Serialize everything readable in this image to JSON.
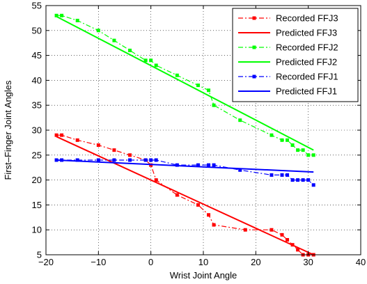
{
  "chart_data": {
    "type": "line",
    "title": "",
    "xlabel": "Wrist Joint Angle",
    "ylabel": "First–Finger Joint Angles",
    "xlim": [
      -20,
      40
    ],
    "ylim": [
      5,
      55
    ],
    "xticks": [
      -20,
      -10,
      0,
      10,
      20,
      30,
      40
    ],
    "yticks": [
      5,
      10,
      15,
      20,
      25,
      30,
      35,
      40,
      45,
      50,
      55
    ],
    "xtick_labels": [
      "−20",
      "−10",
      "0",
      "10",
      "20",
      "30",
      "40"
    ],
    "ytick_labels": [
      "5",
      "10",
      "15",
      "20",
      "25",
      "30",
      "35",
      "40",
      "45",
      "50",
      "55"
    ],
    "grid": true,
    "legend_position": "top-right",
    "series": [
      {
        "name": "Recorded FFJ3",
        "color": "#ff0000",
        "style": "dash-dot",
        "marker": "square",
        "x": [
          -18,
          -17,
          -14,
          -10,
          -7,
          -4,
          -1,
          0,
          1,
          5,
          9,
          11,
          12,
          18,
          23,
          25,
          26,
          27,
          28,
          29,
          30,
          31
        ],
        "y": [
          29,
          29,
          28,
          27,
          26,
          25,
          24,
          23,
          20,
          17,
          15,
          13,
          11,
          10,
          10,
          9,
          8,
          7,
          6,
          5,
          5,
          5
        ]
      },
      {
        "name": "Predicted FFJ3",
        "color": "#ff0000",
        "style": "solid",
        "marker": "none",
        "x": [
          -18,
          31
        ],
        "y": [
          28.7,
          5
        ]
      },
      {
        "name": "Recorded FFJ2",
        "color": "#00ff00",
        "style": "dash-dot",
        "marker": "square",
        "x": [
          -18,
          -17,
          -14,
          -10,
          -7,
          -4,
          -1,
          0,
          1,
          5,
          9,
          11,
          12,
          17,
          23,
          25,
          26,
          27,
          28,
          29,
          30,
          31
        ],
        "y": [
          53,
          53,
          52,
          50,
          48,
          46,
          44,
          44,
          43,
          41,
          39,
          38,
          35,
          32,
          29,
          28,
          28,
          27,
          26,
          26,
          25,
          25
        ]
      },
      {
        "name": "Predicted FFJ2",
        "color": "#00ff00",
        "style": "solid",
        "marker": "none",
        "x": [
          -18,
          31
        ],
        "y": [
          52.8,
          26
        ]
      },
      {
        "name": "Recorded FFJ1",
        "color": "#0000ff",
        "style": "dash-dot",
        "marker": "square",
        "x": [
          -18,
          -17,
          -14,
          -10,
          -7,
          -4,
          -1,
          0,
          1,
          5,
          9,
          11,
          12,
          17,
          23,
          25,
          26,
          27,
          28,
          29,
          30,
          31
        ],
        "y": [
          24,
          24,
          24,
          24,
          24,
          24,
          24,
          24,
          24,
          23,
          23,
          23,
          23,
          22,
          21,
          21,
          21,
          20,
          20,
          20,
          20,
          19
        ]
      },
      {
        "name": "Predicted FFJ1",
        "color": "#0000ff",
        "style": "solid",
        "marker": "none",
        "x": [
          -18,
          31
        ],
        "y": [
          24,
          21.6
        ]
      }
    ]
  }
}
